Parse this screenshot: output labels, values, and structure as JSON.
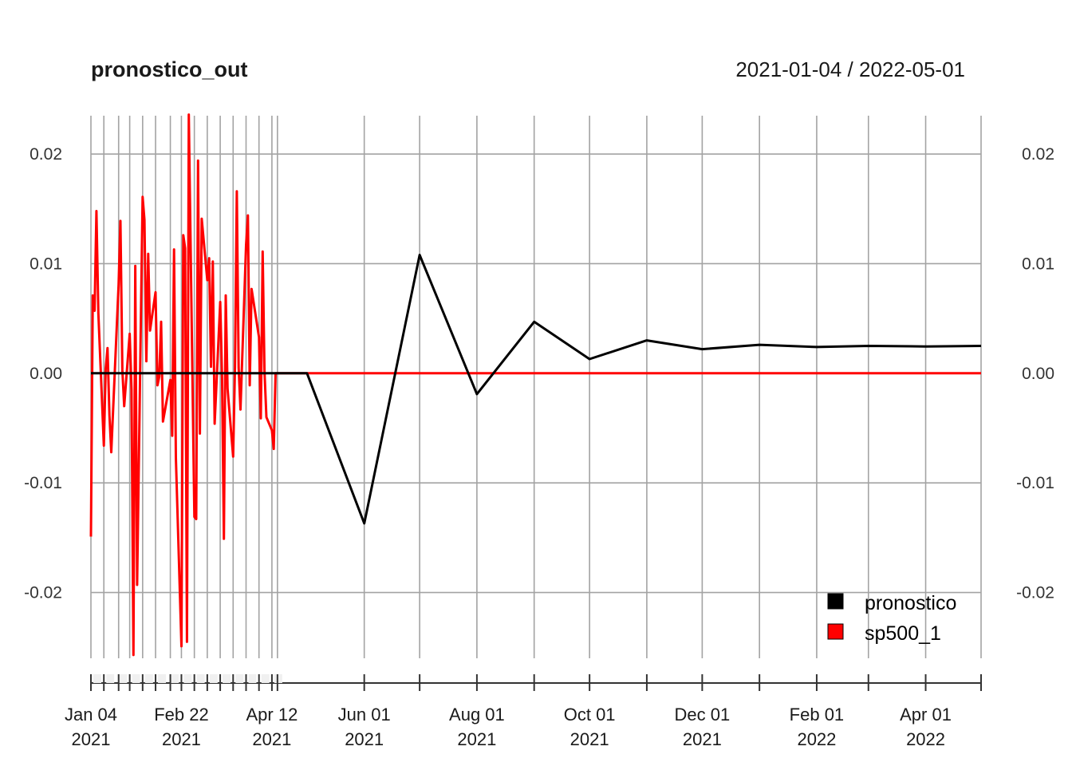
{
  "chart_data": {
    "type": "line",
    "title": "pronostico_out",
    "date_range": "2021-01-04 / 2022-05-01",
    "y_ticks": [
      "0.02",
      "0.01",
      "0.00",
      "-0.01",
      "-0.02"
    ],
    "y_tick_values": [
      0.02,
      0.01,
      0.0,
      -0.01,
      -0.02
    ],
    "ylim": [
      -0.026,
      0.0235
    ],
    "xlim": [
      "2021-01-04",
      "2022-05-01"
    ],
    "grid": true,
    "legend_position": "bottom-right",
    "x_ticks": [
      {
        "date": "2021-01-04",
        "line1": "Jan 04",
        "line2": "2021"
      },
      {
        "date": "2021-02-22",
        "line1": "Feb 22",
        "line2": "2021"
      },
      {
        "date": "2021-04-12",
        "line1": "Apr 12",
        "line2": "2021"
      },
      {
        "date": "2021-06-01",
        "line1": "Jun 01",
        "line2": "2021"
      },
      {
        "date": "2021-08-01",
        "line1": "Aug 01",
        "line2": "2021"
      },
      {
        "date": "2021-10-01",
        "line1": "Oct 01",
        "line2": "2021"
      },
      {
        "date": "2021-12-01",
        "line1": "Dec 01",
        "line2": "2021"
      },
      {
        "date": "2022-02-01",
        "line1": "Feb 01",
        "line2": "2022"
      },
      {
        "date": "2022-04-01",
        "line1": "Apr 01",
        "line2": "2022"
      }
    ],
    "minor_gridlines": [
      "2021-01-04",
      "2021-01-11",
      "2021-01-19",
      "2021-01-25",
      "2021-02-01",
      "2021-02-08",
      "2021-02-16",
      "2021-02-22",
      "2021-03-01",
      "2021-03-08",
      "2021-03-15",
      "2021-03-22",
      "2021-03-29",
      "2021-04-05",
      "2021-04-12",
      "2021-04-15",
      "2021-06-01",
      "2021-07-01",
      "2021-08-01",
      "2021-09-01",
      "2021-10-01",
      "2021-11-01",
      "2021-12-01",
      "2022-01-01",
      "2022-02-01",
      "2022-03-01",
      "2022-04-01",
      "2022-05-01"
    ],
    "series": [
      {
        "name": "pronostico",
        "color": "#000000",
        "x": [
          "2021-01-04",
          "2021-04-15",
          "2021-05-01",
          "2021-06-01",
          "2021-07-01",
          "2021-08-01",
          "2021-09-01",
          "2021-10-01",
          "2021-11-01",
          "2021-12-01",
          "2022-01-01",
          "2022-02-01",
          "2022-03-01",
          "2022-04-01",
          "2022-05-01"
        ],
        "y": [
          0.0,
          0.0,
          0.0,
          -0.0137,
          0.0108,
          -0.0019,
          0.0047,
          0.0013,
          0.003,
          0.0022,
          0.0026,
          0.0024,
          0.0025,
          0.00245,
          0.0025
        ]
      },
      {
        "name": "sp500_1",
        "color": "#ff0000",
        "x": [
          "2021-01-04",
          "2021-01-05",
          "2021-01-06",
          "2021-01-07",
          "2021-01-08",
          "2021-01-11",
          "2021-01-12",
          "2021-01-13",
          "2021-01-14",
          "2021-01-15",
          "2021-01-19",
          "2021-01-20",
          "2021-01-21",
          "2021-01-22",
          "2021-01-25",
          "2021-01-26",
          "2021-01-27",
          "2021-01-28",
          "2021-01-29",
          "2021-02-01",
          "2021-02-02",
          "2021-02-03",
          "2021-02-04",
          "2021-02-05",
          "2021-02-08",
          "2021-02-09",
          "2021-02-10",
          "2021-02-11",
          "2021-02-12",
          "2021-02-16",
          "2021-02-17",
          "2021-02-18",
          "2021-02-19",
          "2021-02-22",
          "2021-02-23",
          "2021-02-24",
          "2021-02-25",
          "2021-02-26",
          "2021-03-01",
          "2021-03-02",
          "2021-03-03",
          "2021-03-04",
          "2021-03-05",
          "2021-03-08",
          "2021-03-09",
          "2021-03-10",
          "2021-03-11",
          "2021-03-12",
          "2021-03-15",
          "2021-03-16",
          "2021-03-17",
          "2021-03-18",
          "2021-03-19",
          "2021-03-22",
          "2021-03-23",
          "2021-03-24",
          "2021-03-25",
          "2021-03-26",
          "2021-03-29",
          "2021-03-30",
          "2021-03-31",
          "2021-04-01",
          "2021-04-05",
          "2021-04-06",
          "2021-04-07",
          "2021-04-08",
          "2021-04-09",
          "2021-04-12",
          "2021-04-13",
          "2021-04-14",
          "2021-04-15",
          "2021-05-01",
          "2021-06-01",
          "2021-07-01",
          "2021-08-01",
          "2021-09-01",
          "2021-10-01",
          "2021-11-01",
          "2021-12-01",
          "2022-01-01",
          "2022-02-01",
          "2022-03-01",
          "2022-04-01",
          "2022-05-01"
        ],
        "y": [
          -0.0149,
          0.0071,
          0.0057,
          0.0148,
          0.0055,
          -0.0066,
          0.0004,
          0.0023,
          -0.0038,
          -0.0072,
          0.0081,
          0.0139,
          0.0003,
          -0.003,
          0.0036,
          -0.0015,
          -0.0257,
          0.0098,
          -0.0193,
          0.0161,
          0.014,
          0.0011,
          0.0109,
          0.0039,
          0.0074,
          -0.0011,
          -0.0003,
          0.0047,
          -0.0044,
          -0.0006,
          -0.0057,
          0.0113,
          -0.0077,
          -0.0249,
          0.0126,
          0.0114,
          -0.0245,
          0.0236,
          -0.0131,
          -0.0133,
          0.0194,
          -0.0055,
          0.0141,
          0.0085,
          0.0105,
          0.0006,
          0.0102,
          -0.0046,
          0.0065,
          -0.0004,
          -0.0151,
          0.0071,
          -0.0014,
          -0.0076,
          0.0006,
          0.0166,
          0.0005,
          -0.0033,
          0.0117,
          0.0144,
          -0.0011,
          0.0077,
          0.0033,
          -0.0041,
          0.0111,
          0.0002,
          -0.004,
          -0.0052,
          -0.0069,
          0.0,
          0.0,
          0.0,
          0.0,
          0.0,
          0.0,
          0.0,
          0.0,
          0.0,
          0.0,
          0.0,
          0.0,
          0.0,
          0.0,
          0.0
        ]
      }
    ]
  }
}
